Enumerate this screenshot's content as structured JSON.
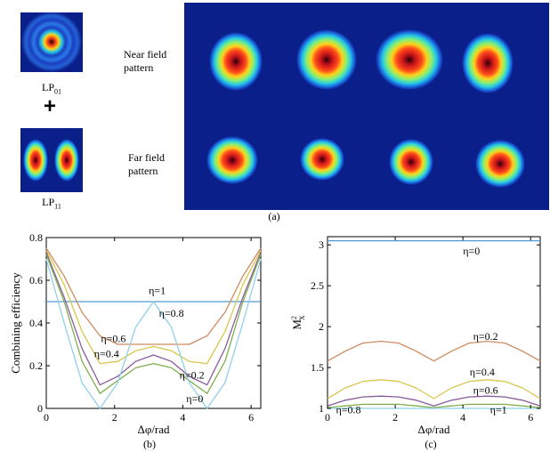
{
  "top": {
    "mode_a": {
      "base": "LP",
      "sub": "01"
    },
    "mode_b": {
      "base": "LP",
      "sub": "11"
    },
    "plus": "+",
    "near_field_label": "Near field pattern",
    "far_field_label": "Far field pattern",
    "panel_label": "(a)"
  },
  "panels": {
    "b_label": "(b)",
    "c_label": "(c)"
  },
  "colors": {
    "field_background": "#0a1f8a",
    "curve_palette": [
      "#4f9bd0",
      "#d08a5f",
      "#d9c64a",
      "#8a5a9a",
      "#7fb04c",
      "#8fd0ea"
    ]
  },
  "chart_data": [
    {
      "id": "b",
      "type": "line",
      "xlabel": "Δφ/rad",
      "ylabel": "Combining efficiency",
      "xlim": [
        0,
        6.283
      ],
      "ylim": [
        0,
        0.8
      ],
      "xticks": [
        0,
        2,
        4,
        6
      ],
      "yticks": [
        0,
        0.2,
        0.4,
        0.6,
        0.8
      ],
      "x": [
        0,
        0.524,
        1.047,
        1.571,
        2.094,
        2.618,
        3.142,
        3.665,
        4.189,
        4.712,
        5.236,
        5.76,
        6.283
      ],
      "series": [
        {
          "name": "η=1",
          "color": "#4f9bd0",
          "values": [
            0.5,
            0.5,
            0.5,
            0.5,
            0.5,
            0.5,
            0.5,
            0.5,
            0.5,
            0.5,
            0.5,
            0.5,
            0.5
          ]
        },
        {
          "name": "η=0.8",
          "color": "#d08a5f",
          "values": [
            0.75,
            0.62,
            0.45,
            0.34,
            0.3,
            0.3,
            0.3,
            0.3,
            0.3,
            0.34,
            0.45,
            0.62,
            0.75
          ]
        },
        {
          "name": "η=0.6",
          "color": "#d9c64a",
          "values": [
            0.74,
            0.58,
            0.36,
            0.21,
            0.22,
            0.27,
            0.29,
            0.27,
            0.22,
            0.21,
            0.36,
            0.58,
            0.74
          ]
        },
        {
          "name": "η=0.4",
          "color": "#8a5a9a",
          "values": [
            0.73,
            0.52,
            0.28,
            0.11,
            0.15,
            0.22,
            0.25,
            0.22,
            0.15,
            0.11,
            0.28,
            0.52,
            0.73
          ]
        },
        {
          "name": "η=0.2",
          "color": "#7fb04c",
          "values": [
            0.72,
            0.5,
            0.22,
            0.07,
            0.13,
            0.19,
            0.21,
            0.19,
            0.13,
            0.07,
            0.22,
            0.5,
            0.72
          ]
        },
        {
          "name": "η=0",
          "color": "#8fd0ea",
          "values": [
            0.7,
            0.4,
            0.12,
            0.0,
            0.12,
            0.38,
            0.5,
            0.38,
            0.12,
            0.0,
            0.12,
            0.4,
            0.7
          ]
        }
      ]
    },
    {
      "id": "c",
      "type": "line",
      "xlabel": "Δφ/rad",
      "ylabel_base": "M",
      "ylabel_sup": "2",
      "ylabel_sub": "X",
      "xlim": [
        0,
        6.283
      ],
      "ylim": [
        1,
        3.1
      ],
      "xticks": [
        0,
        2,
        4,
        6
      ],
      "yticks": [
        1,
        1.5,
        2,
        2.5,
        3
      ],
      "x": [
        0,
        0.524,
        1.047,
        1.571,
        2.094,
        2.618,
        3.142,
        3.665,
        4.189,
        4.712,
        5.236,
        5.76,
        6.283
      ],
      "series": [
        {
          "name": "η=0",
          "color": "#4f9bd0",
          "values": [
            3.05,
            3.05,
            3.05,
            3.05,
            3.05,
            3.05,
            3.05,
            3.05,
            3.05,
            3.05,
            3.05,
            3.05,
            3.05
          ]
        },
        {
          "name": "η=0.2",
          "color": "#d08a5f",
          "values": [
            1.58,
            1.7,
            1.8,
            1.82,
            1.8,
            1.7,
            1.58,
            1.7,
            1.8,
            1.82,
            1.8,
            1.7,
            1.58
          ]
        },
        {
          "name": "η=0.4",
          "color": "#d9c64a",
          "values": [
            1.12,
            1.25,
            1.33,
            1.35,
            1.33,
            1.25,
            1.12,
            1.25,
            1.33,
            1.35,
            1.33,
            1.25,
            1.12
          ]
        },
        {
          "name": "η=0.6",
          "color": "#8a5a9a",
          "values": [
            1.03,
            1.1,
            1.14,
            1.15,
            1.14,
            1.1,
            1.03,
            1.1,
            1.14,
            1.15,
            1.14,
            1.1,
            1.03
          ]
        },
        {
          "name": "η=0.8",
          "color": "#7fb04c",
          "values": [
            1.01,
            1.03,
            1.05,
            1.05,
            1.05,
            1.03,
            1.01,
            1.03,
            1.05,
            1.05,
            1.05,
            1.03,
            1.01
          ]
        },
        {
          "name": "η=1",
          "color": "#8fd0ea",
          "values": [
            1.0,
            1.0,
            1.0,
            1.0,
            1.0,
            1.0,
            1.0,
            1.0,
            1.0,
            1.0,
            1.0,
            1.0,
            1.0
          ]
        }
      ]
    }
  ]
}
